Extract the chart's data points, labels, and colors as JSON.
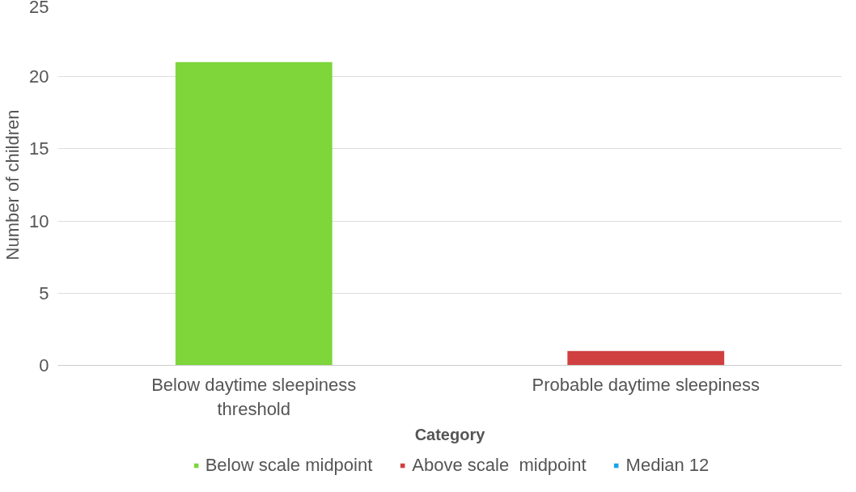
{
  "chart_data": {
    "type": "bar",
    "stacked": true,
    "xlabel": "Category",
    "ylabel": "Number of children",
    "categories": [
      "Below daytime sleepiness threshold",
      "Probable daytime sleepiness"
    ],
    "series": [
      {
        "name": "Below scale midpoint",
        "color": "#7ed63a",
        "values": [
          21,
          null
        ]
      },
      {
        "name": "Above scale  midpoint",
        "color": "#d04040",
        "values": [
          null,
          1
        ]
      },
      {
        "name": "Median 12",
        "color": "#1aa3e8",
        "values": [
          null,
          null
        ]
      }
    ],
    "ylim": [
      0,
      25
    ],
    "yticks": [
      0,
      5,
      10,
      15,
      20,
      25
    ],
    "grid": "y",
    "legend": "bottom"
  }
}
